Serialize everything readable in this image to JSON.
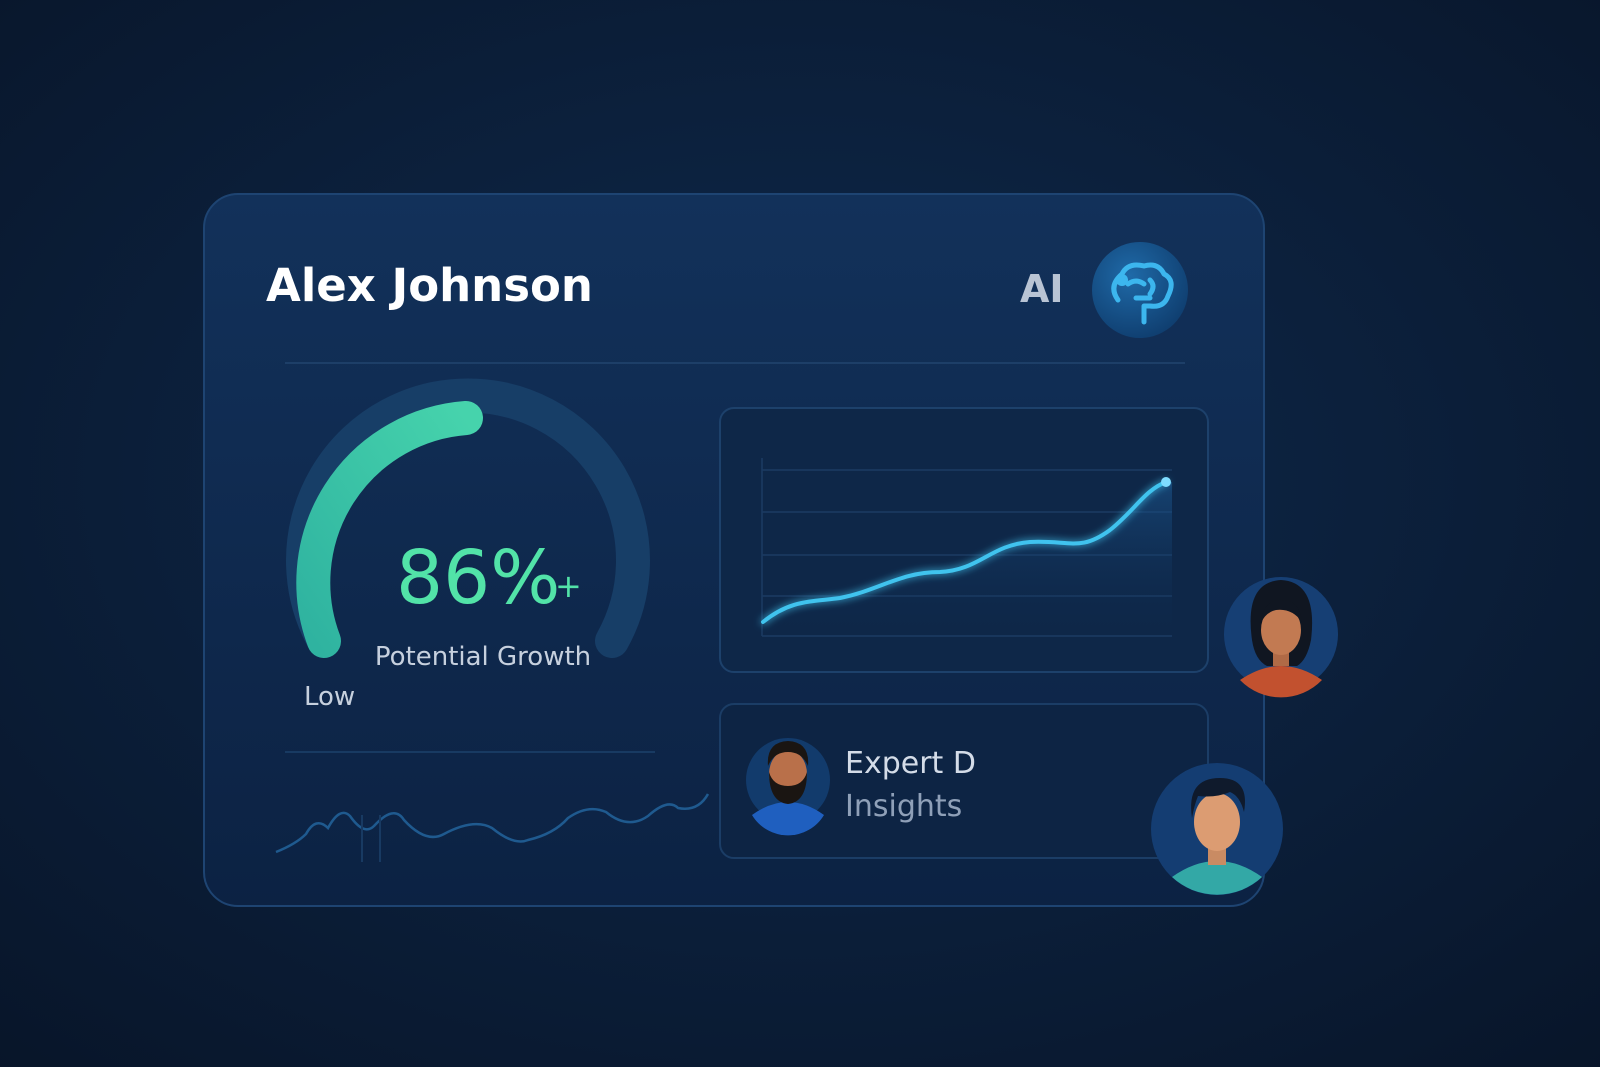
{
  "header": {
    "name": "Alex Johnson",
    "badge": "AI"
  },
  "gauge": {
    "value_label": "86%",
    "suffix": "+",
    "label": "Potential Growth",
    "low_label": "Low"
  },
  "expert": {
    "title": "Expert D",
    "subtitle": "Insights"
  }
}
